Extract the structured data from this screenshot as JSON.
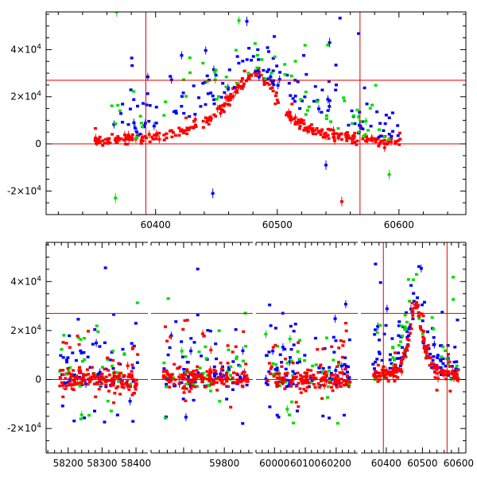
{
  "chart_data": [
    {
      "type": "scatter",
      "title": "",
      "xlabel": "",
      "ylabel": "",
      "xlim": [
        60310,
        60655
      ],
      "ylim": [
        -30000,
        56000
      ],
      "xticks": [
        60400,
        60500,
        60600
      ],
      "xtick_labels": [
        "60400",
        "60500",
        "60600"
      ],
      "yticks": [
        -20000,
        0,
        20000,
        40000
      ],
      "ytick_labels": [
        {
          "mant": "-2×10",
          "exp": "4"
        },
        {
          "mant": "0",
          "exp": ""
        },
        {
          "mant": "2×10",
          "exp": "4"
        },
        {
          "mant": "4×10",
          "exp": "4"
        }
      ],
      "hlines": [
        0,
        27000
      ],
      "vlines": [
        60392,
        60568
      ],
      "peak": {
        "x": 60482,
        "y": 30000
      },
      "series": [
        {
          "color": "#ff0000",
          "count": 340,
          "scatter_frac": 0.04,
          "spread": 3000,
          "span": [
            60350,
            60602
          ]
        },
        {
          "color": "#0000ff",
          "count": 150,
          "scatter_frac": 0.6,
          "spread": 20000,
          "span": [
            60363,
            60600
          ]
        },
        {
          "color": "#00dd00",
          "count": 70,
          "scatter_frac": 0.6,
          "spread": 18000,
          "span": [
            60363,
            60600
          ]
        }
      ],
      "extreme_points": [
        {
          "x": 60368,
          "y": 56000,
          "color": "#00dd00"
        },
        {
          "x": 60367,
          "y": -23000,
          "color": "#00dd00"
        },
        {
          "x": 60447,
          "y": -21000,
          "color": "#0000ff"
        },
        {
          "x": 60553,
          "y": -24500,
          "color": "#ff0000"
        },
        {
          "x": 60540,
          "y": -9000,
          "color": "#0000ff"
        },
        {
          "x": 60592,
          "y": -13000,
          "color": "#00dd00"
        },
        {
          "x": 60543,
          "y": 43000,
          "color": "#0000ff"
        },
        {
          "x": 60475,
          "y": 52000,
          "color": "#0000ff"
        }
      ]
    },
    {
      "type": "scatter",
      "title": "",
      "xlabel": "",
      "ylabel": "",
      "ylim": [
        -30000,
        56000
      ],
      "segments": [
        {
          "xlim": [
            58135,
            58435
          ],
          "xticks": [
            58200,
            58300,
            58400
          ]
        },
        {
          "xlim": [
            59620,
            59870
          ],
          "xticks": [
            59800
          ]
        },
        {
          "xlim": [
            59940,
            60270
          ],
          "xticks": [
            60000,
            60100,
            60200
          ]
        },
        {
          "xlim": [
            60330,
            60620
          ],
          "xticks": [
            60400,
            60500,
            60600
          ]
        }
      ],
      "xtick_labels": [
        "58200",
        "58300",
        "58400",
        "59800",
        "60000",
        "60100",
        "60200",
        "60400",
        "60500",
        "60600"
      ],
      "yticks": [
        -20000,
        0,
        20000,
        40000
      ],
      "ytick_labels": [
        {
          "mant": "-2×10",
          "exp": "4"
        },
        {
          "mant": "0",
          "exp": ""
        },
        {
          "mant": "2×10",
          "exp": "4"
        },
        {
          "mant": "4×10",
          "exp": "4"
        }
      ],
      "hlines": [
        0,
        27000
      ],
      "vlines": [
        60392,
        60568
      ],
      "seasons": [
        {
          "span": [
            58175,
            58405
          ],
          "red": 150,
          "blue": 80,
          "green": 45
        },
        {
          "span": [
            59650,
            59860
          ],
          "red": 150,
          "blue": 80,
          "green": 45
        },
        {
          "span": [
            59970,
            60245
          ],
          "red": 150,
          "blue": 90,
          "green": 45
        },
        {
          "span": [
            60363,
            60600
          ],
          "red": 170,
          "blue": 110,
          "green": 45,
          "peak": {
            "x": 60482,
            "y": 30000
          }
        }
      ],
      "colors": {
        "red": "#ff0000",
        "blue": "#0000ff",
        "green": "#00dd00"
      }
    }
  ]
}
